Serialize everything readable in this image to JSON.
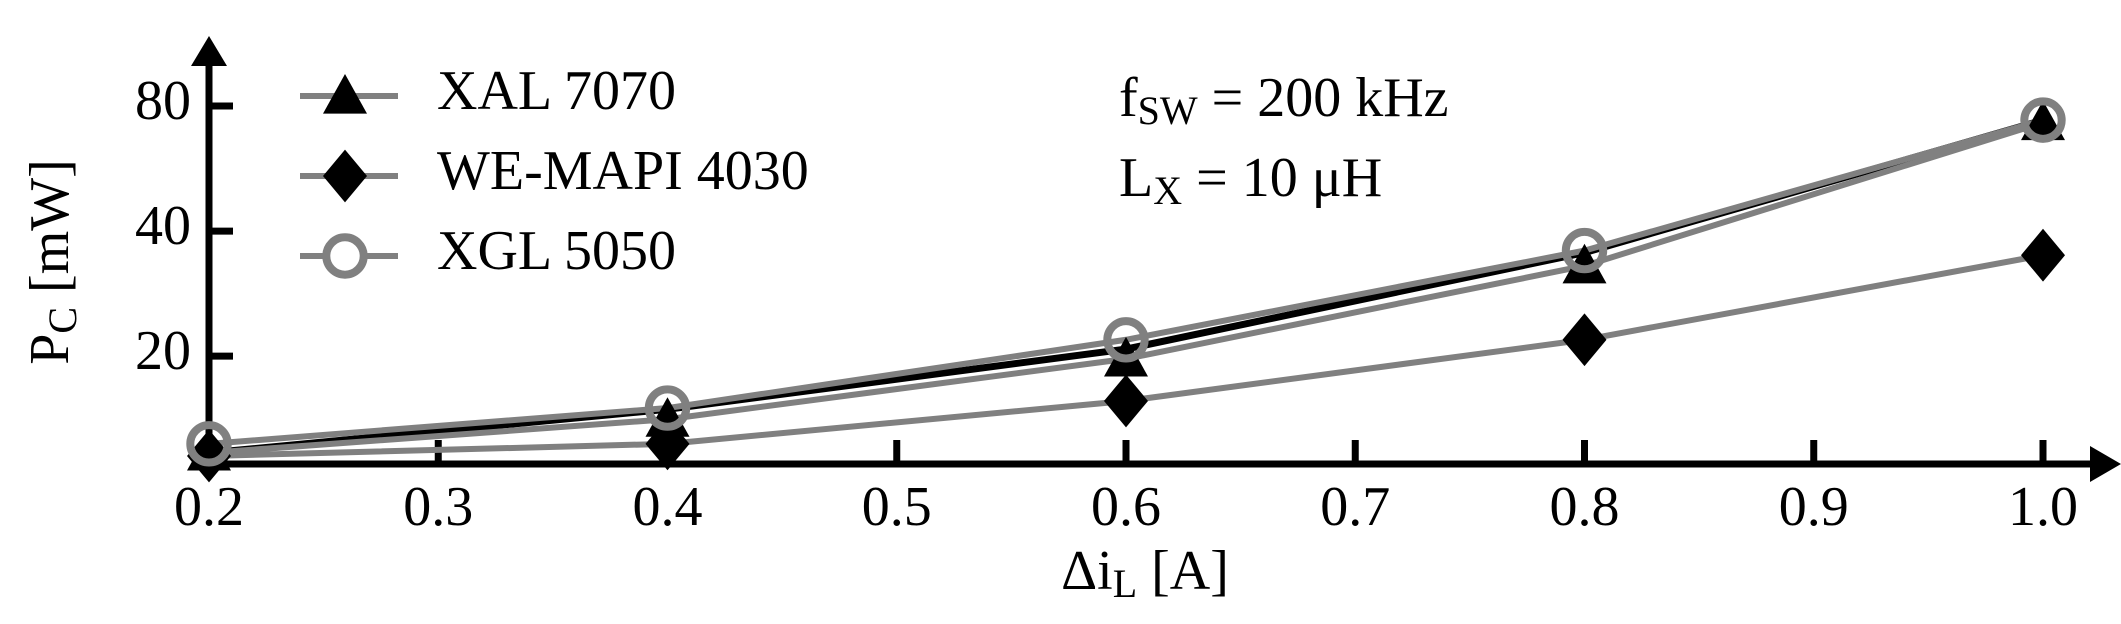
{
  "chart_data": {
    "type": "line",
    "xlabel": [
      "Δi",
      "L",
      " [A]"
    ],
    "ylabel": [
      "P",
      "C",
      " [mW]"
    ],
    "annotations": [
      [
        "f",
        "SW",
        " = 200 kHz"
      ],
      [
        "L",
        "X",
        " = 10 μH"
      ]
    ],
    "x": [
      0.2,
      0.4,
      0.6,
      0.8,
      1.0
    ],
    "xlim": [
      0.2,
      1.0
    ],
    "xticks": [
      0.2,
      0.3,
      0.4,
      0.5,
      0.6,
      0.7,
      0.8,
      0.9,
      {
        "value": 1,
        "label": "1.0"
      }
    ],
    "ylim": [
      11,
      105
    ],
    "yscale": "log",
    "yticks": [
      20,
      40,
      80
    ],
    "legend": "upper left",
    "series": [
      {
        "color": "#000000",
        "values": [
          11.7,
          14.9,
          20.8,
          35.5,
          74
        ]
      },
      {
        "name": "XAL 7070",
        "color": "#808080",
        "marker": "triangle",
        "marker_color": "#000000",
        "values": [
          11.7,
          14.1,
          19.7,
          33,
          73
        ]
      },
      {
        "name": "WE-MAPI 4030",
        "color": "#808080",
        "marker": "diamond",
        "marker_color": "#000000",
        "values": [
          11.5,
          12.3,
          15.6,
          21.9,
          35
        ]
      },
      {
        "name": "XGL 5050",
        "color": "#808080",
        "marker": "circle",
        "marker_color": "#808080",
        "values": [
          12.3,
          15,
          21.9,
          35.9,
          74
        ]
      }
    ]
  }
}
